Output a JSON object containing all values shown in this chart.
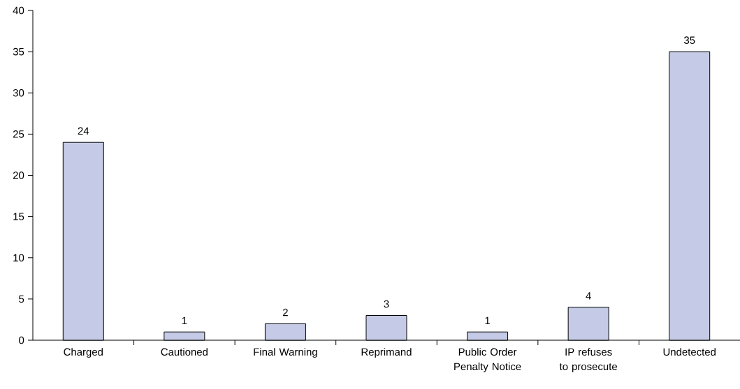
{
  "chart_data": {
    "type": "bar",
    "categories": [
      "Charged",
      "Cautioned",
      "Final Warning",
      "Reprimand",
      "Public Order Penalty Notice",
      "IP refuses to prosecute",
      "Undetected"
    ],
    "values": [
      24,
      1,
      2,
      3,
      1,
      4,
      35
    ],
    "color": "#c5cbe6",
    "ylim": [
      0,
      40
    ],
    "yticks": [
      0,
      5,
      10,
      15,
      20,
      25,
      30,
      35,
      40
    ],
    "data_labels": true,
    "grid": false
  }
}
